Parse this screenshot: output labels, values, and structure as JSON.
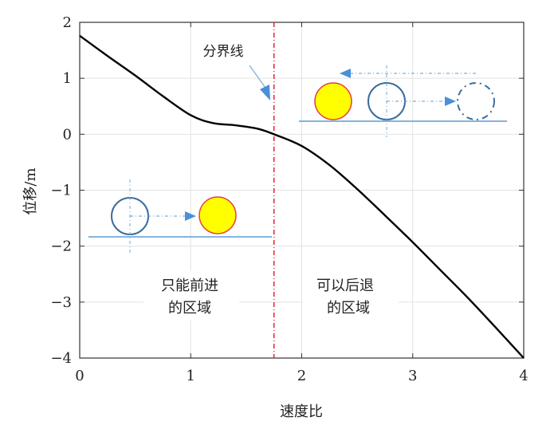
{
  "chart_data": {
    "type": "line",
    "title": "",
    "xlabel": "速度比",
    "ylabel": "位移/m",
    "xlim": [
      0,
      4
    ],
    "ylim": [
      -4,
      2
    ],
    "xticks": [
      0,
      1,
      2,
      3,
      4
    ],
    "yticks": [
      2,
      1,
      0,
      -1,
      -2,
      -3,
      -4
    ],
    "xtick_labels": [
      "0",
      "1",
      "2",
      "3",
      "4"
    ],
    "ytick_labels": [
      "2",
      "1",
      "0",
      "−1",
      "−2",
      "−3",
      "−4"
    ],
    "grid": true,
    "series": [
      {
        "name": "位移",
        "color": "#000000",
        "x": [
          0,
          0.25,
          0.5,
          0.75,
          1,
          1.2,
          1.4,
          1.6,
          1.75,
          2,
          2.25,
          2.5,
          2.75,
          3,
          3.25,
          3.5,
          3.75,
          4
        ],
        "y": [
          1.76,
          1.4,
          1.05,
          0.68,
          0.34,
          0.2,
          0.16,
          0.1,
          0.0,
          -0.21,
          -0.55,
          -0.98,
          -1.45,
          -1.93,
          -2.43,
          -2.93,
          -3.46,
          -4.0
        ]
      }
    ],
    "boundary": {
      "x": 1.75,
      "label": "分界线",
      "color": "#e8202a"
    },
    "annotations": [
      {
        "text_lines": [
          "只能前进",
          "的区域"
        ]
      },
      {
        "text_lines": [
          "可以后退",
          "的区域"
        ]
      }
    ]
  }
}
